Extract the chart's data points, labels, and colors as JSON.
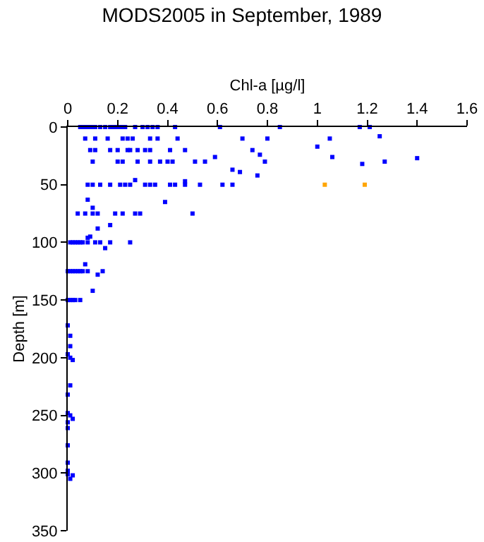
{
  "chart_data": {
    "type": "scatter",
    "title": "MODS2005 in September, 1989",
    "xlabel": "Chl-a [µg/l]",
    "ylabel": "Depth [m]",
    "xlim": [
      0,
      1.6
    ],
    "xticks": [
      0,
      0.2,
      0.4,
      0.6,
      0.8,
      1,
      1.2,
      1.4,
      1.6
    ],
    "ylim": [
      350,
      0
    ],
    "yticks": [
      0,
      50,
      100,
      150,
      200,
      250,
      300,
      350
    ],
    "grid": false,
    "marker": "square",
    "series": [
      {
        "color": "#0000ff",
        "x": [
          0.05,
          0.06,
          0.07,
          0.08,
          0.09,
          0.1,
          0.11,
          0.13,
          0.15,
          0.17,
          0.18,
          0.19,
          0.2,
          0.21,
          0.22,
          0.23,
          0.27,
          0.3,
          0.32,
          0.34,
          0.36,
          0.43,
          0.61,
          0.85,
          1.17,
          1.21,
          0.07,
          0.11,
          0.16,
          0.22,
          0.24,
          0.26,
          0.33,
          0.36,
          0.44,
          0.7,
          0.8,
          1.05,
          1.25,
          0.09,
          0.11,
          0.17,
          0.2,
          0.24,
          0.25,
          0.28,
          0.31,
          0.33,
          0.41,
          0.47,
          0.74,
          0.77,
          1.0,
          0.1,
          0.2,
          0.22,
          0.28,
          0.33,
          0.37,
          0.4,
          0.42,
          0.51,
          0.55,
          0.79,
          1.06,
          1.18,
          1.27,
          1.4,
          0.59,
          0.66,
          0.69,
          0.76,
          0.08,
          0.1,
          0.13,
          0.17,
          0.21,
          0.23,
          0.25,
          0.31,
          0.33,
          0.35,
          0.41,
          0.43,
          0.47,
          0.53,
          0.62,
          0.66,
          0.27,
          0.47,
          0.08,
          0.39,
          0.1,
          0.04,
          0.07,
          0.1,
          0.12,
          0.19,
          0.22,
          0.27,
          0.29,
          0.5,
          0.17,
          0.12,
          0.09,
          0.08,
          0.01,
          0.02,
          0.03,
          0.04,
          0.05,
          0.06,
          0.08,
          0.11,
          0.13,
          0.17,
          0.25,
          0.15,
          0,
          0.01,
          0.02,
          0.03,
          0.04,
          0.05,
          0.06,
          0.08,
          0.14,
          0.07,
          0.12,
          0.1,
          0,
          0.01,
          0.02,
          0.03,
          0.05,
          0,
          0.01,
          0.01,
          0,
          0.01,
          0.02,
          0.01,
          0,
          0,
          0.01,
          0.02,
          0,
          0,
          0,
          0,
          0,
          0,
          0.02,
          0.01
        ],
        "values": [
          0,
          0,
          0,
          0,
          0,
          0,
          0,
          0,
          0,
          0,
          0,
          0,
          0,
          0,
          0,
          0,
          0,
          0,
          0,
          0,
          0,
          0,
          0,
          0,
          0,
          0,
          10,
          10,
          10,
          10,
          10,
          10,
          10,
          10,
          10,
          10,
          10,
          10,
          8,
          20,
          20,
          20,
          20,
          20,
          20,
          20,
          20,
          20,
          20,
          20,
          20,
          24,
          17,
          30,
          30,
          30,
          30,
          30,
          30,
          30,
          30,
          30,
          30,
          30,
          26,
          32,
          30,
          27,
          26,
          37,
          39,
          42,
          50,
          50,
          50,
          50,
          50,
          50,
          50,
          50,
          50,
          50,
          50,
          50,
          50,
          50,
          50,
          50,
          46,
          47,
          63,
          65,
          70,
          75,
          75,
          75,
          75,
          75,
          75,
          75,
          75,
          75,
          85,
          88,
          95,
          96,
          100,
          100,
          100,
          100,
          100,
          100,
          100,
          100,
          100,
          100,
          100,
          105,
          125,
          125,
          125,
          125,
          125,
          125,
          125,
          125,
          125,
          119,
          128,
          142,
          150,
          150,
          150,
          150,
          150,
          172,
          181,
          190,
          197,
          200,
          202,
          224,
          232,
          248,
          250,
          253,
          256,
          261,
          276,
          291,
          298,
          301,
          302,
          305
        ]
      },
      {
        "color": "#ffa500",
        "x": [
          1.03,
          1.19
        ],
        "values": [
          50,
          50
        ]
      }
    ]
  }
}
